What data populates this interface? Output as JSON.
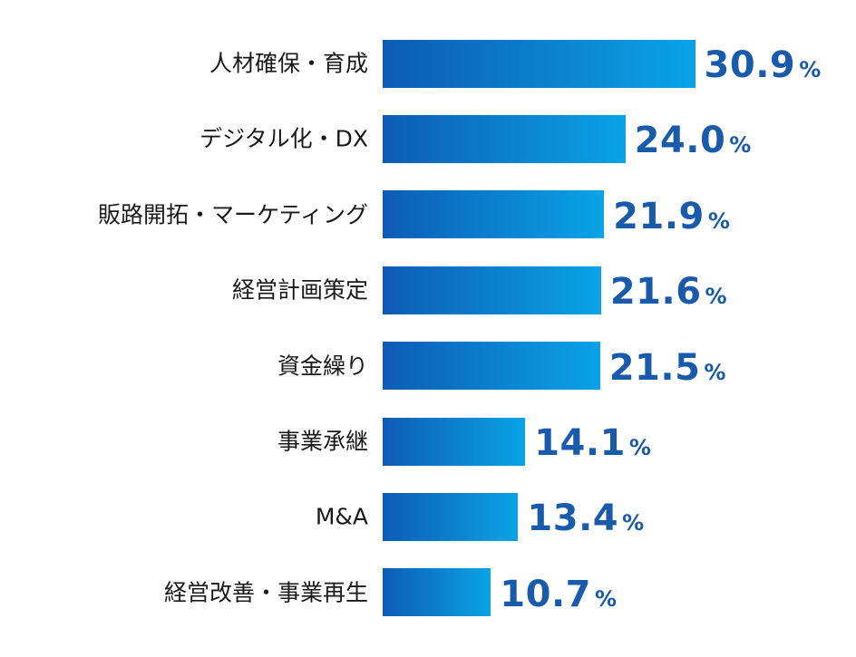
{
  "chart_data": {
    "type": "bar",
    "orientation": "horizontal",
    "unit": "%",
    "categories": [
      "人材確保・育成",
      "デジタル化・DX",
      "販路開拓・マーケティング",
      "経営計画策定",
      "資金繰り",
      "事業承継",
      "M&A",
      "経営改善・事業再生"
    ],
    "values": [
      30.9,
      24.0,
      21.9,
      21.6,
      21.5,
      14.1,
      13.4,
      10.7
    ],
    "value_labels": [
      "30.9",
      "24.0",
      "21.9",
      "21.6",
      "21.5",
      "14.1",
      "13.4",
      "10.7"
    ],
    "grid": false,
    "legend": "none"
  },
  "colors": {
    "bar_gradient_start": "#0d5bb5",
    "bar_gradient_end": "#0aa3e6",
    "value_text": "#1a5aab",
    "label_text": "#1a1a1a"
  }
}
